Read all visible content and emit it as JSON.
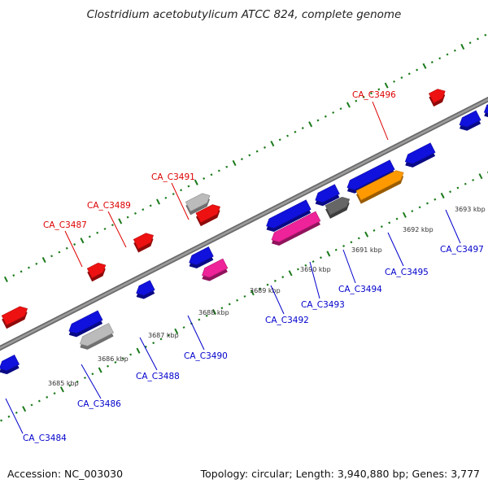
{
  "title": "Clostridium acetobutylicum ATCC 824, complete genome",
  "footer": {
    "accession": "Accession: NC_003030",
    "summary": "Topology: circular; Length: 3,940,880 bp; Genes: 3,777"
  },
  "colors": {
    "backbone": "#888888",
    "dots": "#1a7a1a",
    "forward_gene": "#ee1111",
    "reverse_gene": "#1111dd",
    "pink_gene": "#ee2299",
    "gray_gene": "#bbbbbb",
    "dark_gray_gene": "#666666",
    "orange_gene": "#ff9900",
    "cyan_gene": "#11cccc",
    "label_forward": "#dd0000",
    "label_reverse": "#0000cc"
  },
  "scale_ticks": [
    "3685 kbp",
    "3686 kbp",
    "3687 kbp",
    "3688 kbp",
    "3689 kbp",
    "3690 kbp",
    "3691 kbp",
    "3692 kbp",
    "3693 kbp"
  ],
  "gene_labels": [
    "CA_C3484",
    "CA_C3486",
    "CA_C3487",
    "CA_C3488",
    "CA_C3489",
    "CA_C3490",
    "CA_C3491",
    "CA_C3492",
    "CA_C3493",
    "CA_C3494",
    "CA_C3495",
    "CA_C3496",
    "CA_C3497"
  ]
}
